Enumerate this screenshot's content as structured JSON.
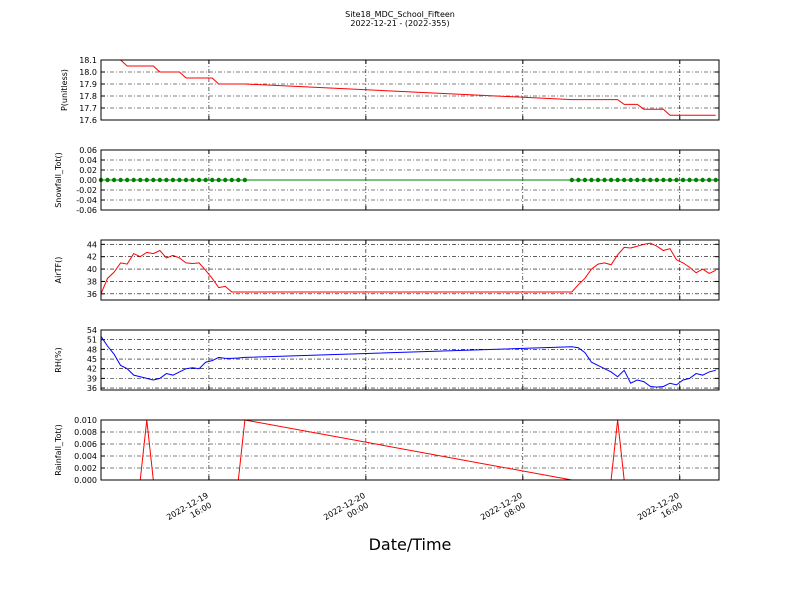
{
  "title": "Site18_MDC_School_Fifteen",
  "subtitle": "2022-12-21 - (2022-355)",
  "xlabel": "Date/Time",
  "chart_data": [
    {
      "type": "line",
      "ylabel": "P(unitless)",
      "color": "#ff0000",
      "grid": true,
      "x": [
        "2022-12-19 10:30",
        "2022-12-19 10:50",
        "2022-12-19 11:10",
        "2022-12-19 11:30",
        "2022-12-19 11:50",
        "2022-12-19 12:10",
        "2022-12-19 12:30",
        "2022-12-19 12:50",
        "2022-12-19 13:10",
        "2022-12-19 13:30",
        "2022-12-19 13:50",
        "2022-12-19 14:10",
        "2022-12-19 14:30",
        "2022-12-19 14:50",
        "2022-12-19 15:10",
        "2022-12-19 15:30",
        "2022-12-19 15:50",
        "2022-12-19 16:10",
        "2022-12-19 16:30",
        "2022-12-19 16:50",
        "2022-12-19 17:10",
        "2022-12-19 17:30",
        "2022-12-19 17:50",
        "2022-12-20 10:30",
        "2022-12-20 10:50",
        "2022-12-20 11:10",
        "2022-12-20 11:30",
        "2022-12-20 11:50",
        "2022-12-20 12:10",
        "2022-12-20 12:30",
        "2022-12-20 12:50",
        "2022-12-20 13:10",
        "2022-12-20 13:30",
        "2022-12-20 13:50",
        "2022-12-20 14:10",
        "2022-12-20 14:30",
        "2022-12-20 14:50",
        "2022-12-20 15:10",
        "2022-12-20 15:30",
        "2022-12-20 15:50",
        "2022-12-20 16:10",
        "2022-12-20 16:30",
        "2022-12-20 16:50",
        "2022-12-20 17:10",
        "2022-12-20 17:30",
        "2022-12-20 17:50"
      ],
      "values": [
        18.1,
        18.1,
        18.1,
        18.1,
        18.05,
        18.05,
        18.05,
        18.05,
        18.05,
        18.0,
        18.0,
        18.0,
        18.0,
        17.95,
        17.95,
        17.95,
        17.95,
        17.95,
        17.9,
        17.9,
        17.9,
        17.9,
        17.9,
        17.77,
        17.77,
        17.77,
        17.77,
        17.77,
        17.77,
        17.77,
        17.77,
        17.73,
        17.73,
        17.73,
        17.69,
        17.69,
        17.69,
        17.69,
        17.64,
        17.64,
        17.64,
        17.64,
        17.64,
        17.64,
        17.64,
        17.64
      ],
      "ylim": [
        17.6,
        18.1
      ],
      "yticks": [
        17.6,
        17.7,
        17.8,
        17.9,
        {
          "value": 18.0,
          "label": "18.0"
        },
        18.1
      ]
    },
    {
      "type": "line-markers",
      "ylabel": "Snowfall_Tot()",
      "color": "#008000",
      "grid": true,
      "x": [
        "2022-12-19 10:30",
        "2022-12-19 10:50",
        "2022-12-19 11:10",
        "2022-12-19 11:30",
        "2022-12-19 11:50",
        "2022-12-19 12:10",
        "2022-12-19 12:30",
        "2022-12-19 12:50",
        "2022-12-19 13:10",
        "2022-12-19 13:30",
        "2022-12-19 13:50",
        "2022-12-19 14:10",
        "2022-12-19 14:30",
        "2022-12-19 14:50",
        "2022-12-19 15:10",
        "2022-12-19 15:30",
        "2022-12-19 15:50",
        "2022-12-19 16:10",
        "2022-12-19 16:30",
        "2022-12-19 16:50",
        "2022-12-19 17:10",
        "2022-12-19 17:30",
        "2022-12-19 17:50",
        "2022-12-20 10:30",
        "2022-12-20 10:50",
        "2022-12-20 11:10",
        "2022-12-20 11:30",
        "2022-12-20 11:50",
        "2022-12-20 12:10",
        "2022-12-20 12:30",
        "2022-12-20 12:50",
        "2022-12-20 13:10",
        "2022-12-20 13:30",
        "2022-12-20 13:50",
        "2022-12-20 14:10",
        "2022-12-20 14:30",
        "2022-12-20 14:50",
        "2022-12-20 15:10",
        "2022-12-20 15:30",
        "2022-12-20 15:50",
        "2022-12-20 16:10",
        "2022-12-20 16:30",
        "2022-12-20 16:50",
        "2022-12-20 17:10",
        "2022-12-20 17:30",
        "2022-12-20 17:50"
      ],
      "values": [
        0,
        0,
        0,
        0,
        0,
        0,
        0,
        0,
        0,
        0,
        0,
        0,
        0,
        0,
        0,
        0,
        0,
        0,
        0,
        0,
        0,
        0,
        0,
        0,
        0,
        0,
        0,
        0,
        0,
        0,
        0,
        0,
        0,
        0,
        0,
        0,
        0,
        0,
        0,
        0,
        0,
        0,
        0,
        0,
        0,
        0
      ],
      "ylim": [
        -0.06,
        0.06
      ],
      "yticks": [
        -0.06,
        -0.04,
        -0.02,
        {
          "value": 0,
          "label": "0.00"
        },
        0.02,
        0.04,
        0.06
      ]
    },
    {
      "type": "line",
      "ylabel": "AirTF()",
      "color": "#ff0000",
      "grid": true,
      "x": [
        "2022-12-19 10:30",
        "2022-12-19 10:50",
        "2022-12-19 11:10",
        "2022-12-19 11:30",
        "2022-12-19 11:50",
        "2022-12-19 12:10",
        "2022-12-19 12:30",
        "2022-12-19 12:50",
        "2022-12-19 13:10",
        "2022-12-19 13:30",
        "2022-12-19 13:50",
        "2022-12-19 14:10",
        "2022-12-19 14:30",
        "2022-12-19 14:50",
        "2022-12-19 15:10",
        "2022-12-19 15:30",
        "2022-12-19 15:50",
        "2022-12-19 16:10",
        "2022-12-19 16:30",
        "2022-12-19 16:50",
        "2022-12-19 17:10",
        "2022-12-19 17:30",
        "2022-12-19 17:50",
        "2022-12-20 10:30",
        "2022-12-20 10:50",
        "2022-12-20 11:10",
        "2022-12-20 11:30",
        "2022-12-20 11:50",
        "2022-12-20 12:10",
        "2022-12-20 12:30",
        "2022-12-20 12:50",
        "2022-12-20 13:10",
        "2022-12-20 13:30",
        "2022-12-20 13:50",
        "2022-12-20 14:10",
        "2022-12-20 14:30",
        "2022-12-20 14:50",
        "2022-12-20 15:10",
        "2022-12-20 15:30",
        "2022-12-20 15:50",
        "2022-12-20 16:10",
        "2022-12-20 16:30",
        "2022-12-20 16:50",
        "2022-12-20 17:10",
        "2022-12-20 17:30",
        "2022-12-20 17:50"
      ],
      "values": [
        36,
        38.5,
        39.5,
        41,
        40.8,
        42.5,
        42,
        42.7,
        42.5,
        43,
        41.8,
        42.2,
        41.8,
        41,
        40.9,
        41,
        39.8,
        38.5,
        37,
        37.2,
        36.3,
        36.3,
        36.3,
        36.3,
        37.5,
        38.5,
        40,
        40.8,
        41,
        40.7,
        42.3,
        43.5,
        43.4,
        43.7,
        44,
        44.2,
        43.7,
        43,
        43.3,
        41.5,
        41,
        40.3,
        39.4,
        40,
        39.3,
        39.8
      ],
      "ylim": [
        35,
        44.7
      ],
      "yticks": [
        36,
        38,
        40,
        42,
        44
      ]
    },
    {
      "type": "line",
      "ylabel": "RH(%)",
      "color": "#0000ff",
      "grid": true,
      "x": [
        "2022-12-19 10:30",
        "2022-12-19 10:50",
        "2022-12-19 11:10",
        "2022-12-19 11:30",
        "2022-12-19 11:50",
        "2022-12-19 12:10",
        "2022-12-19 12:30",
        "2022-12-19 12:50",
        "2022-12-19 13:10",
        "2022-12-19 13:30",
        "2022-12-19 13:50",
        "2022-12-19 14:10",
        "2022-12-19 14:30",
        "2022-12-19 14:50",
        "2022-12-19 15:10",
        "2022-12-19 15:30",
        "2022-12-19 15:50",
        "2022-12-19 16:10",
        "2022-12-19 16:30",
        "2022-12-19 16:50",
        "2022-12-19 17:10",
        "2022-12-19 17:30",
        "2022-12-19 17:50",
        "2022-12-20 10:30",
        "2022-12-20 10:50",
        "2022-12-20 11:10",
        "2022-12-20 11:30",
        "2022-12-20 11:50",
        "2022-12-20 12:10",
        "2022-12-20 12:30",
        "2022-12-20 12:50",
        "2022-12-20 13:10",
        "2022-12-20 13:30",
        "2022-12-20 13:50",
        "2022-12-20 14:10",
        "2022-12-20 14:30",
        "2022-12-20 14:50",
        "2022-12-20 15:10",
        "2022-12-20 15:30",
        "2022-12-20 15:50",
        "2022-12-20 16:10",
        "2022-12-20 16:30",
        "2022-12-20 16:50",
        "2022-12-20 17:10",
        "2022-12-20 17:30",
        "2022-12-20 17:50"
      ],
      "values": [
        52,
        49,
        46.5,
        43,
        42,
        40,
        39.5,
        39,
        38.5,
        39,
        40.5,
        40,
        41,
        42,
        42.3,
        42,
        44,
        44.5,
        45.5,
        45.2,
        45.2,
        45.3,
        45.5,
        48.8,
        48.5,
        47,
        44,
        43,
        42,
        41,
        39.5,
        41.5,
        37.5,
        38.5,
        38,
        36.5,
        36.3,
        36.5,
        37.5,
        37,
        38.5,
        39,
        40.5,
        40,
        41,
        41.5
      ],
      "ylim": [
        35.4,
        54
      ],
      "yticks": [
        36,
        39,
        42,
        45,
        48,
        51,
        54
      ]
    },
    {
      "type": "line",
      "ylabel": "Rainfall_Tot()",
      "color": "#ff0000",
      "grid": true,
      "x": [
        "2022-12-19 10:30",
        "2022-12-19 10:50",
        "2022-12-19 11:10",
        "2022-12-19 11:30",
        "2022-12-19 11:50",
        "2022-12-19 12:10",
        "2022-12-19 12:30",
        "2022-12-19 12:50",
        "2022-12-19 13:10",
        "2022-12-19 13:30",
        "2022-12-19 13:50",
        "2022-12-19 14:10",
        "2022-12-19 14:30",
        "2022-12-19 14:50",
        "2022-12-19 15:10",
        "2022-12-19 15:30",
        "2022-12-19 15:50",
        "2022-12-19 16:10",
        "2022-12-19 16:30",
        "2022-12-19 16:50",
        "2022-12-19 17:10",
        "2022-12-19 17:30",
        "2022-12-19 17:50",
        "2022-12-20 10:30",
        "2022-12-20 10:50",
        "2022-12-20 11:10",
        "2022-12-20 11:30",
        "2022-12-20 11:50",
        "2022-12-20 12:10",
        "2022-12-20 12:30",
        "2022-12-20 12:50",
        "2022-12-20 13:10",
        "2022-12-20 13:30",
        "2022-12-20 13:50",
        "2022-12-20 14:10",
        "2022-12-20 14:30",
        "2022-12-20 14:50",
        "2022-12-20 15:10",
        "2022-12-20 15:30",
        "2022-12-20 15:50",
        "2022-12-20 16:10",
        "2022-12-20 16:30",
        "2022-12-20 16:50",
        "2022-12-20 17:10",
        "2022-12-20 17:30",
        "2022-12-20 17:50"
      ],
      "values": [
        0,
        0,
        0,
        0,
        0,
        0,
        0,
        0.01,
        0,
        0,
        0,
        0,
        0,
        0,
        0,
        0,
        0,
        0,
        0,
        0,
        0,
        0,
        0.01,
        0,
        0,
        0,
        0,
        0,
        0,
        0,
        0.01,
        0,
        0,
        0,
        0,
        0,
        0,
        0,
        0,
        0,
        0,
        0,
        0,
        0,
        0,
        0
      ],
      "ylim": [
        0,
        0.01
      ],
      "yticks": [
        {
          "value": 0,
          "label": "0.000"
        },
        {
          "value": 0.002,
          "label": "0.002"
        },
        {
          "value": 0.004,
          "label": "0.004"
        },
        {
          "value": 0.006,
          "label": "0.006"
        },
        {
          "value": 0.008,
          "label": "0.008"
        },
        {
          "value": 0.01,
          "label": "0.010"
        }
      ],
      "xlim": [
        "2022-12-19 10:30",
        "2022-12-20 18:00"
      ],
      "xticks": [
        "2022-12-19 16:00",
        "2022-12-20 00:00",
        "2022-12-20 08:00",
        "2022-12-20 16:00"
      ]
    }
  ]
}
